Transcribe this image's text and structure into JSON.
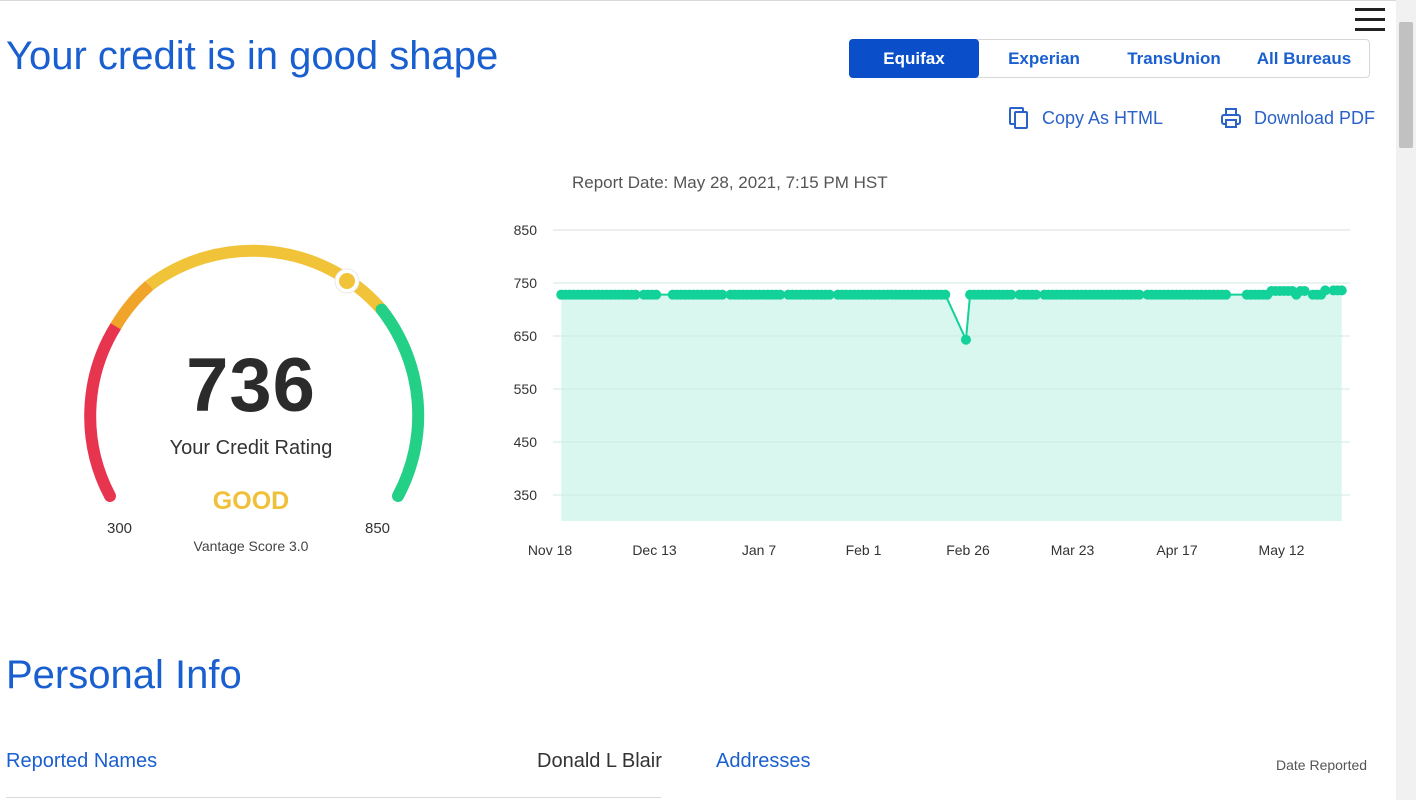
{
  "header": {
    "title": "Your credit is in good shape"
  },
  "bureau_tabs": [
    {
      "label": "Equifax",
      "active": true
    },
    {
      "label": "Experian",
      "active": false
    },
    {
      "label": "TransUnion",
      "active": false
    },
    {
      "label": "All Bureaus",
      "active": false
    }
  ],
  "actions": {
    "copy_html": "Copy As HTML",
    "download_pdf": "Download PDF"
  },
  "report_date": "Report Date: May 28, 2021, 7:15 PM HST",
  "gauge": {
    "score": "736",
    "label": "Your Credit Rating",
    "rating": "GOOD",
    "min": "300",
    "max": "850",
    "model": "Vantage Score 3.0",
    "score_value": 736,
    "range": [
      300,
      850
    ],
    "colors": {
      "poor": "#e8354f",
      "fair": "#f0a52a",
      "good": "#f1c338",
      "excellent": "#24cf86",
      "accent": "#f0c03a"
    }
  },
  "chart_data": {
    "type": "area",
    "xlabel": "",
    "ylabel": "",
    "yticks": [
      850,
      750,
      650,
      550,
      450,
      350
    ],
    "xticks": [
      "Nov 18",
      "Dec 13",
      "Jan 7",
      "Feb 1",
      "Feb 26",
      "Mar 23",
      "Apr 17",
      "May 12"
    ],
    "ylim": [
      300,
      850
    ],
    "x_range_days": [
      -2,
      191
    ],
    "grid": true,
    "legend": "none",
    "color": "#12d29a",
    "fill_color": "#d9f7ef",
    "series": [
      {
        "x_day": [
          0,
          1,
          2,
          3,
          4,
          5,
          6,
          7,
          8,
          9,
          10,
          11,
          12,
          13,
          14,
          15,
          16,
          17,
          18,
          20,
          21,
          22,
          23,
          27,
          28,
          29,
          30,
          31,
          32,
          33,
          34,
          35,
          36,
          37,
          38,
          39,
          41,
          42,
          43,
          44,
          45,
          46,
          47,
          48,
          49,
          50,
          51,
          52,
          53,
          55,
          56,
          57,
          58,
          59,
          60,
          61,
          62,
          63,
          64,
          65,
          67,
          68,
          69,
          70,
          71,
          72,
          73,
          74,
          75,
          76,
          77,
          78,
          79,
          80,
          81,
          82,
          83,
          84,
          85,
          86,
          87,
          88,
          89,
          90,
          91,
          92,
          93,
          98,
          99,
          100,
          101,
          102,
          103,
          104,
          105,
          106,
          107,
          108,
          109,
          111,
          112,
          113,
          114,
          115,
          117,
          118,
          119,
          120,
          121,
          122,
          123,
          124,
          125,
          126,
          127,
          128,
          129,
          130,
          131,
          132,
          133,
          134,
          135,
          136,
          137,
          138,
          139,
          140,
          142,
          143,
          144,
          145,
          146,
          147,
          148,
          149,
          150,
          151,
          152,
          153,
          154,
          155,
          156,
          157,
          158,
          159,
          160,
          161,
          166,
          167,
          168,
          169,
          170,
          171,
          172,
          173,
          174,
          175,
          176,
          177,
          178,
          179,
          180,
          182,
          183,
          184,
          185,
          187,
          188,
          189
        ],
        "y": [
          728,
          728,
          728,
          728,
          728,
          728,
          728,
          728,
          728,
          728,
          728,
          728,
          728,
          728,
          728,
          728,
          728,
          728,
          728,
          728,
          728,
          728,
          728,
          728,
          728,
          728,
          728,
          728,
          728,
          728,
          728,
          728,
          728,
          728,
          728,
          728,
          728,
          728,
          728,
          728,
          728,
          728,
          728,
          728,
          728,
          728,
          728,
          728,
          728,
          728,
          728,
          728,
          728,
          728,
          728,
          728,
          728,
          728,
          728,
          728,
          728,
          728,
          728,
          728,
          728,
          728,
          728,
          728,
          728,
          728,
          728,
          728,
          728,
          728,
          728,
          728,
          728,
          728,
          728,
          728,
          728,
          728,
          728,
          728,
          728,
          728,
          728,
          643,
          728,
          728,
          728,
          728,
          728,
          728,
          728,
          728,
          728,
          728,
          728,
          728,
          728,
          728,
          728,
          728,
          728,
          728,
          728,
          728,
          728,
          728,
          728,
          728,
          728,
          728,
          728,
          728,
          728,
          728,
          728,
          728,
          728,
          728,
          728,
          728,
          728,
          728,
          728,
          728,
          728,
          728,
          728,
          728,
          728,
          728,
          728,
          728,
          728,
          728,
          728,
          728,
          728,
          728,
          728,
          728,
          728,
          728,
          728,
          728,
          728,
          728,
          728,
          728,
          728,
          728,
          735,
          735,
          735,
          735,
          735,
          735,
          728,
          735,
          735,
          728,
          728,
          728,
          736,
          736,
          736,
          736
        ]
      }
    ]
  },
  "personal_info": {
    "title": "Personal Info",
    "reported_names": "Reported Names",
    "name_value": "Donald L Blair",
    "addresses": "Addresses",
    "date_reported": "Date Reported"
  }
}
